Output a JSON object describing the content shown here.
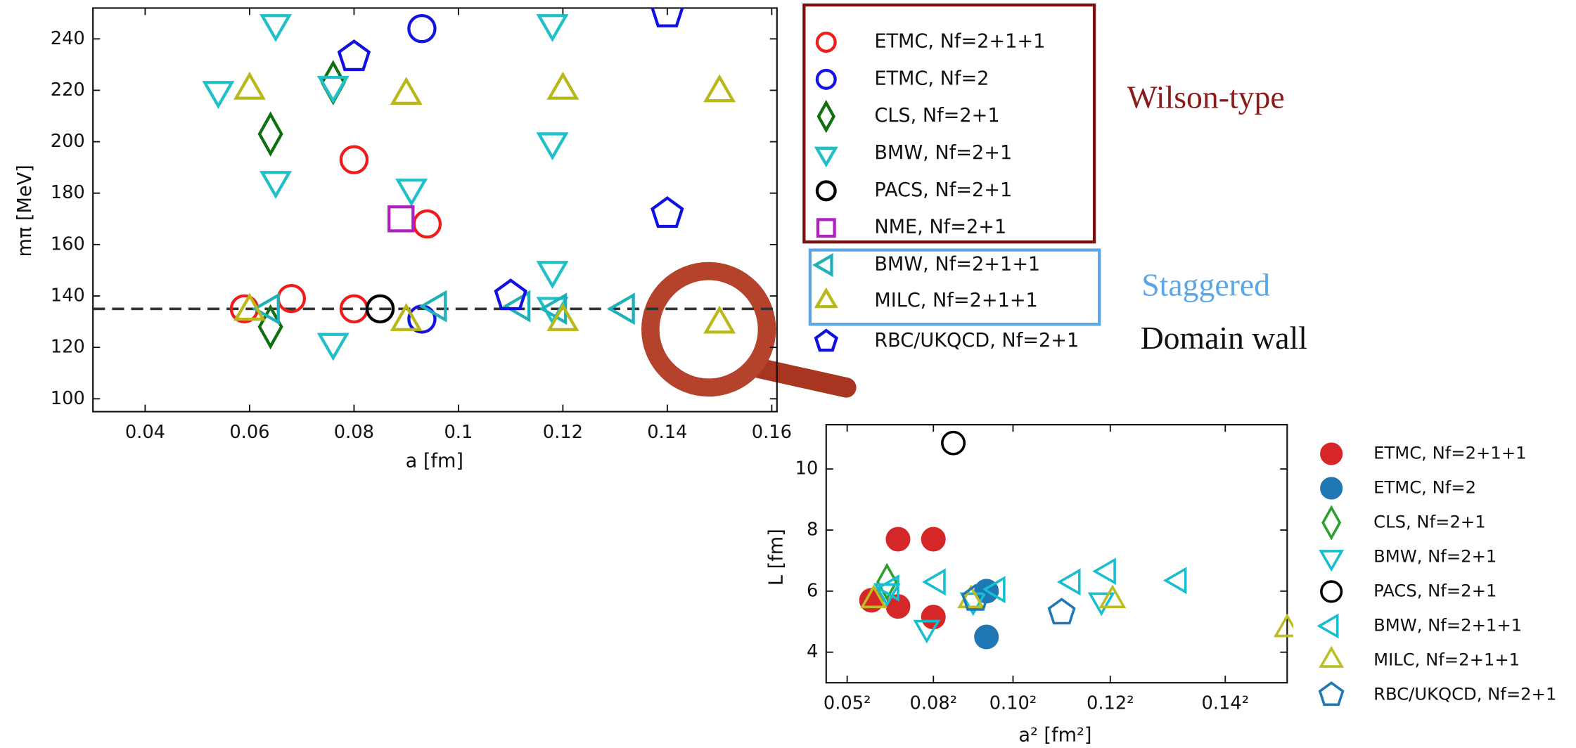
{
  "chart_data": [
    {
      "type": "scatter",
      "xlabel": "a [fm]",
      "ylabel": "mπ [MeV]",
      "xlim": [
        0.03,
        0.161
      ],
      "ylim": [
        95,
        252
      ],
      "xticks": [
        0.04,
        0.06,
        0.08,
        0.1,
        0.12,
        0.14,
        0.16
      ],
      "yticks": [
        100,
        120,
        140,
        160,
        180,
        200,
        220,
        240
      ],
      "hline": 135,
      "series": [
        {
          "name": "ETMC, Nf=2+1+1",
          "color": "#f01c1c",
          "marker": "circle",
          "filled": false,
          "x": [
            0.059,
            0.068,
            0.08,
            0.08,
            0.094
          ],
          "values": [
            135,
            139,
            135,
            193,
            168
          ]
        },
        {
          "name": "ETMC, Nf=2",
          "color": "#1414e0",
          "marker": "circle",
          "filled": false,
          "x": [
            0.093,
            0.093
          ],
          "values": [
            131,
            244
          ]
        },
        {
          "name": "CLS, Nf=2+1",
          "color": "#107010",
          "marker": "diamond",
          "filled": false,
          "x": [
            0.064,
            0.064,
            0.076
          ],
          "values": [
            203,
            128,
            223
          ]
        },
        {
          "name": "BMW, Nf=2+1",
          "color": "#20c0c8",
          "marker": "tri_down",
          "filled": false,
          "x": [
            0.054,
            0.065,
            0.065,
            0.076,
            0.076,
            0.091,
            0.118,
            0.118,
            0.118,
            0.118
          ],
          "values": [
            220,
            246,
            185,
            222,
            122,
            182,
            246,
            200,
            150,
            136
          ]
        },
        {
          "name": "PACS, Nf=2+1",
          "color": "#000000",
          "marker": "circle",
          "filled": false,
          "x": [
            0.085
          ],
          "values": [
            135
          ]
        },
        {
          "name": "NME, Nf=2+1",
          "color": "#b020c0",
          "marker": "square",
          "filled": false,
          "x": [
            0.089
          ],
          "values": [
            170
          ]
        },
        {
          "name": "BMW, Nf=2+1+1",
          "color": "#20b0b8",
          "marker": "tri_left",
          "filled": false,
          "x": [
            0.064,
            0.096,
            0.112,
            0.119,
            0.132
          ],
          "values": [
            135,
            136,
            136,
            135,
            135
          ]
        },
        {
          "name": "MILC, Nf=2+1+1",
          "color": "#b8b818",
          "marker": "tri_up",
          "filled": false,
          "x": [
            0.06,
            0.06,
            0.09,
            0.09,
            0.12,
            0.12,
            0.15,
            0.15
          ],
          "values": [
            220,
            134,
            218,
            130,
            220,
            130,
            219,
            129
          ]
        },
        {
          "name": "RBC/UKQCD, Nf=2+1",
          "color": "#1010e0",
          "marker": "pentagon",
          "filled": false,
          "x": [
            0.08,
            0.11,
            0.14,
            0.14
          ],
          "values": [
            233,
            140,
            172,
            250
          ]
        }
      ],
      "annotations": [
        {
          "text": "Wilson-type",
          "color": "#8b1a1a"
        },
        {
          "text": "Staggered",
          "color": "#5aa6e6"
        },
        {
          "text": "Domain wall",
          "color": "#111111"
        }
      ]
    },
    {
      "type": "scatter",
      "xlabel": "a² [fm²]",
      "ylabel": "L [fm]",
      "xlim": [
        0.00155,
        0.0224
      ],
      "ylim": [
        3,
        11.45
      ],
      "xticks": [
        {
          "value": 0.0025,
          "label": "0.05²"
        },
        {
          "value": 0.0064,
          "label": "0.08²"
        },
        {
          "value": 0.01,
          "label": "0.10²"
        },
        {
          "value": 0.0144,
          "label": "0.12²"
        },
        {
          "value": 0.0196,
          "label": "0.14²"
        }
      ],
      "yticks": [
        4,
        6,
        8,
        10
      ],
      "series": [
        {
          "name": "ETMC, Nf=2+1+1",
          "color": "#d62728",
          "marker": "circle",
          "filled": true,
          "x": [
            0.0036,
            0.0048,
            0.0048,
            0.0064,
            0.0064
          ],
          "values": [
            5.7,
            5.5,
            7.7,
            7.7,
            5.15
          ]
        },
        {
          "name": "ETMC, Nf=2",
          "color": "#1f77b4",
          "marker": "circle",
          "filled": true,
          "x": [
            0.0088,
            0.0088
          ],
          "values": [
            4.5,
            6.0
          ]
        },
        {
          "name": "CLS, Nf=2+1",
          "color": "#2ca02c",
          "marker": "diamond",
          "filled": false,
          "x": [
            0.0043
          ],
          "values": [
            6.3
          ]
        },
        {
          "name": "BMW, Nf=2+1",
          "color": "#17becf",
          "marker": "tri_down",
          "filled": false,
          "x": [
            0.0043,
            0.0061,
            0.0082,
            0.014
          ],
          "values": [
            6.0,
            4.8,
            5.7,
            5.7
          ]
        },
        {
          "name": "PACS, Nf=2+1",
          "color": "#000000",
          "marker": "circle",
          "filled": false,
          "x": [
            0.0073
          ],
          "values": [
            10.85
          ]
        },
        {
          "name": "BMW, Nf=2+1+1",
          "color": "#17becf",
          "marker": "tri_left",
          "filled": false,
          "x": [
            0.0045,
            0.0066,
            0.0093,
            0.0127,
            0.0143,
            0.0175
          ],
          "values": [
            6.1,
            6.3,
            6.05,
            6.3,
            6.65,
            6.35
          ]
        },
        {
          "name": "MILC, Nf=2+1+1",
          "color": "#bcbd22",
          "marker": "tri_up",
          "filled": false,
          "x": [
            0.0037,
            0.0081,
            0.0145,
            0.0224
          ],
          "values": [
            5.7,
            5.7,
            5.7,
            4.75
          ]
        },
        {
          "name": "RBC/UKQCD, Nf=2+1",
          "color": "#1f77b4",
          "marker": "pentagon",
          "filled": false,
          "x": [
            0.0083,
            0.0122
          ],
          "values": [
            5.75,
            5.3
          ]
        }
      ]
    }
  ]
}
